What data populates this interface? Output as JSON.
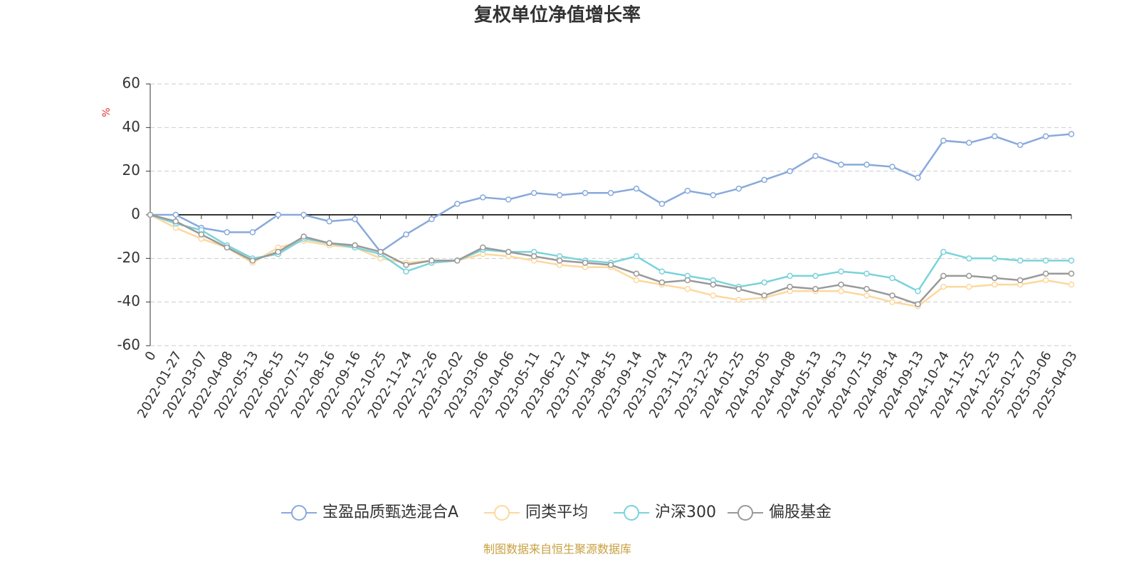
{
  "chart_data": {
    "type": "line",
    "title": "复权单位净值增长率",
    "y_label": "%",
    "source": "制图数据来自恒生聚源数据库",
    "categories": [
      "0",
      "2022-01-27",
      "2022-03-07",
      "2022-04-08",
      "2022-05-13",
      "2022-06-15",
      "2022-07-15",
      "2022-08-16",
      "2022-09-16",
      "2022-10-25",
      "2022-11-24",
      "2022-12-26",
      "2023-02-02",
      "2023-03-06",
      "2023-04-06",
      "2023-05-11",
      "2023-06-12",
      "2023-07-14",
      "2023-08-15",
      "2023-09-14",
      "2023-10-24",
      "2023-11-23",
      "2023-12-25",
      "2024-01-25",
      "2024-03-05",
      "2024-04-08",
      "2024-05-13",
      "2024-06-13",
      "2024-07-15",
      "2024-08-14",
      "2024-09-13",
      "2024-10-24",
      "2024-11-25",
      "2024-12-25",
      "2025-01-27",
      "2025-03-06",
      "2025-04-03"
    ],
    "series": [
      {
        "name": "宝盈品质甄选混合A",
        "color": "#88a9dc",
        "values": [
          0,
          0,
          -6,
          -8,
          -8,
          0,
          0,
          -3,
          -2,
          -17,
          -9,
          -2,
          5,
          8,
          7,
          10,
          9,
          10,
          10,
          12,
          5,
          11,
          9,
          12,
          16,
          20,
          27,
          23,
          23,
          22,
          17,
          34,
          33,
          36,
          32,
          36,
          37
        ]
      },
      {
        "name": "同类平均",
        "color": "#fdd89c",
        "values": [
          0,
          -6,
          -11,
          -15,
          -22,
          -15,
          -12,
          -14,
          -15,
          -20,
          -22,
          -21,
          -21,
          -18,
          -19,
          -21,
          -23,
          -24,
          -24,
          -30,
          -32,
          -34,
          -37,
          -39,
          -38,
          -35,
          -35,
          -35,
          -37,
          -40,
          -42,
          -33,
          -33,
          -32,
          -32,
          -30,
          -32
        ]
      },
      {
        "name": "沪深300",
        "color": "#7ad3da",
        "values": [
          0,
          -4,
          -7,
          -14,
          -20,
          -18,
          -11,
          -13,
          -15,
          -18,
          -26,
          -22,
          -21,
          -16,
          -17,
          -17,
          -19,
          -21,
          -22,
          -19,
          -26,
          -28,
          -30,
          -33,
          -31,
          -28,
          -28,
          -26,
          -27,
          -29,
          -35,
          -17,
          -20,
          -20,
          -21,
          -21,
          -21
        ]
      },
      {
        "name": "偏股基金",
        "color": "#999999",
        "values": [
          0,
          -3,
          -9,
          -15,
          -21,
          -17,
          -10,
          -13,
          -14,
          -17,
          -23,
          -21,
          -21,
          -15,
          -17,
          -19,
          -21,
          -22,
          -23,
          -27,
          -31,
          -30,
          -32,
          -34,
          -37,
          -33,
          -34,
          -32,
          -34,
          -37,
          -41,
          -28,
          -28,
          -29,
          -30,
          -27,
          -27
        ]
      }
    ],
    "ylim": [
      -60,
      60
    ],
    "yticks": [
      -60,
      -40,
      -20,
      0,
      20,
      40,
      60
    ],
    "grid": true
  }
}
